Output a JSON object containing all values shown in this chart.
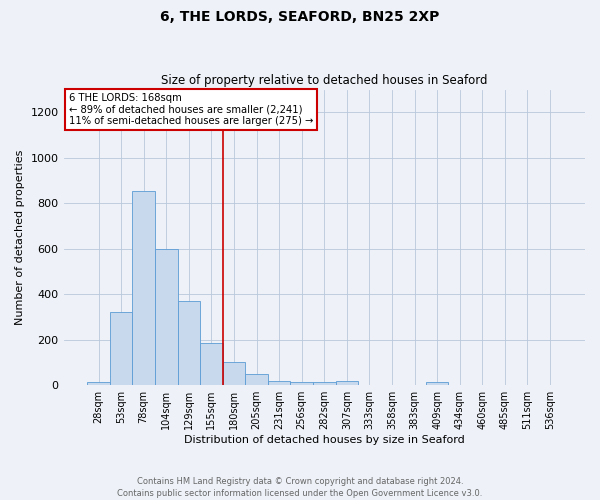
{
  "title": "6, THE LORDS, SEAFORD, BN25 2XP",
  "subtitle": "Size of property relative to detached houses in Seaford",
  "xlabel": "Distribution of detached houses by size in Seaford",
  "ylabel": "Number of detached properties",
  "bar_color": "#c9d9ed",
  "bar_edge_color": "#5b9bd5",
  "background_color": "#eef2f8",
  "categories": [
    "28sqm",
    "53sqm",
    "78sqm",
    "104sqm",
    "129sqm",
    "155sqm",
    "180sqm",
    "205sqm",
    "231sqm",
    "256sqm",
    "282sqm",
    "307sqm",
    "333sqm",
    "358sqm",
    "383sqm",
    "409sqm",
    "434sqm",
    "460sqm",
    "485sqm",
    "511sqm",
    "536sqm"
  ],
  "values": [
    13,
    320,
    855,
    600,
    370,
    185,
    100,
    48,
    20,
    15,
    15,
    17,
    0,
    0,
    0,
    12,
    0,
    0,
    0,
    0,
    0
  ],
  "ylim": [
    0,
    1300
  ],
  "yticks": [
    0,
    200,
    400,
    600,
    800,
    1000,
    1200
  ],
  "annotation_text_lines": [
    "6 THE LORDS: 168sqm",
    "← 89% of detached houses are smaller (2,241)",
    "11% of semi-detached houses are larger (275) →"
  ],
  "footer_text": "Contains HM Land Registry data © Crown copyright and database right 2024.\nContains public sector information licensed under the Open Government Licence v3.0.",
  "red_line_color": "#cc0000",
  "grid_color": "#b8c8dc",
  "red_line_index": 5.52
}
